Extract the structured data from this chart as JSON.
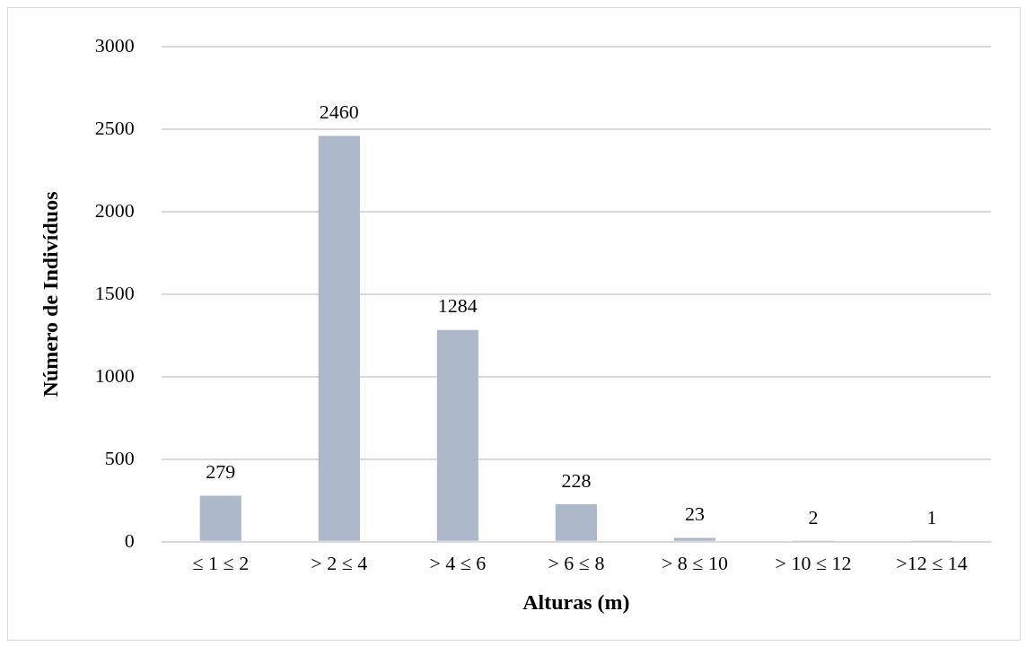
{
  "chart_data": {
    "type": "bar",
    "xlabel": "Alturas (m)",
    "ylabel": "Número de Indivíduos",
    "categories": [
      "≤ 1 ≤ 2",
      "> 2 ≤ 4",
      "> 4 ≤ 6",
      "> 6 ≤ 8",
      "> 8 ≤ 10",
      "> 10 ≤ 12",
      ">12 ≤ 14"
    ],
    "values": [
      279,
      2460,
      1284,
      228,
      23,
      2,
      1
    ],
    "color": "#adb9ca",
    "ylim": [
      0,
      3000
    ],
    "yticks": [
      0,
      500,
      1000,
      1500,
      2000,
      2500,
      3000
    ],
    "grid": "y",
    "data_labels": true,
    "legend": false
  }
}
